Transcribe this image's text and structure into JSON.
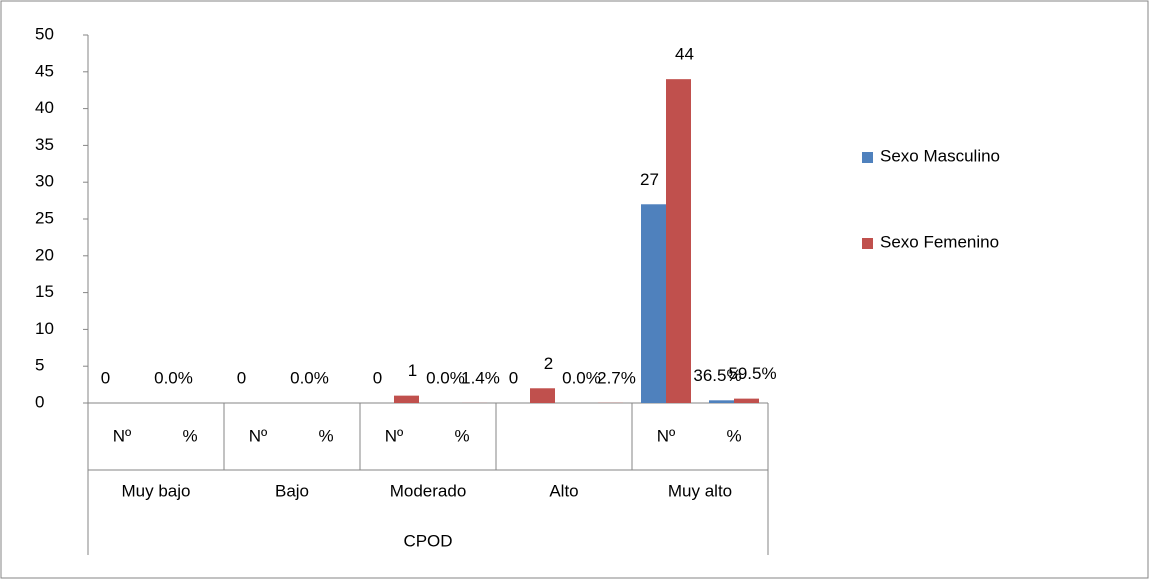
{
  "chart_data": {
    "type": "bar",
    "categories": [
      "Nº",
      "%",
      "Nº",
      "%",
      "Nº",
      "%",
      null,
      null,
      "Nº",
      "%"
    ],
    "groups": [
      "Muy bajo",
      "Bajo",
      "Moderado",
      "Alto",
      "Muy alto"
    ],
    "group_title": "CPOD",
    "series": [
      {
        "name": "Sexo Masculino",
        "color": "#4f81bd",
        "values": [
          0,
          0,
          0,
          0,
          0,
          0,
          0,
          0,
          27,
          0.365
        ],
        "value_labels": [
          "0",
          "0.0%",
          "0",
          "0.0%",
          "0",
          "0.0%",
          "0",
          "0.0%",
          "27",
          "36.5%"
        ]
      },
      {
        "name": "Sexo Femenino",
        "color": "#c0504d",
        "values": [
          0,
          0,
          0,
          0,
          1,
          0.014,
          2,
          0.027,
          44,
          0.595
        ],
        "value_labels": [
          null,
          null,
          null,
          null,
          "1",
          "1.4%",
          "2",
          "2.7%",
          "44",
          "59.5%"
        ]
      }
    ],
    "ylim": [
      0,
      50
    ],
    "yticks": [
      0,
      5,
      10,
      15,
      20,
      25,
      30,
      35,
      40,
      45,
      50
    ],
    "grid": false,
    "legend": "right"
  }
}
